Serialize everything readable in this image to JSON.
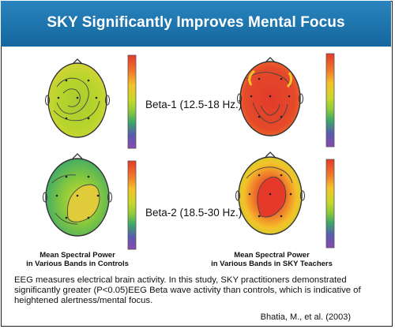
{
  "header": {
    "title": "SKY Significantly Improves Mental Focus"
  },
  "bands": [
    {
      "label": "Beta-1 (12.5-18 Hz.)"
    },
    {
      "label": "Beta-2 (18.5-30 Hz.)"
    }
  ],
  "captions": {
    "left": {
      "title": "Mean Spectral Power",
      "subtitle": "in Various Bands in Controls"
    },
    "right": {
      "title": "Mean Spectral Power",
      "subtitle": "in Various Bands in SKY Teachers"
    }
  },
  "description": "EEG measures electrical brain activity. In this study, SKY practitioners demonstrated significantly greater (P<0.05)EEG Beta wave activity than controls, which is indicative of heightened alertness/mental focus.",
  "citation": "Bhatia, M., et al. (2003)",
  "colors": {
    "header": "#1a6fa6",
    "scale": [
      "#e53a2a",
      "#f07a2a",
      "#f4c22a",
      "#c8d82a",
      "#8ecb3a",
      "#3aa86a",
      "#5a5ab0",
      "#8a4ab0"
    ]
  }
}
